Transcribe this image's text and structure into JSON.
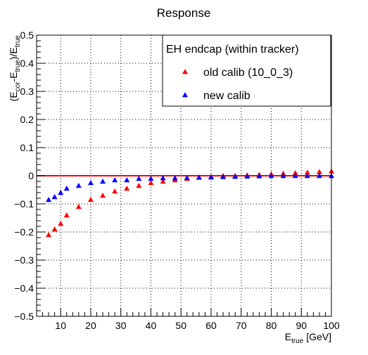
{
  "chart_data": {
    "type": "scatter",
    "title": "Response",
    "xlabel": "E",
    "xlabel_sub": "true",
    "xlabel_unit": " [GeV]",
    "ylabel_parts": [
      {
        "t": "(E",
        "sub": false
      },
      {
        "t": "cor",
        "sub": true
      },
      {
        "t": "-E",
        "sub": false
      },
      {
        "t": "true",
        "sub": true
      },
      {
        "t": ")/E",
        "sub": false
      },
      {
        "t": "true",
        "sub": true
      }
    ],
    "xlim": [
      2,
      100
    ],
    "ylim": [
      -0.5,
      0.5
    ],
    "xticks": [
      10,
      20,
      30,
      40,
      50,
      60,
      70,
      80,
      90,
      100
    ],
    "yticks": [
      -0.5,
      -0.4,
      -0.3,
      -0.2,
      -0.1,
      0,
      0.1,
      0.2,
      0.3,
      0.4,
      0.5
    ],
    "ytick_labels": [
      "−0.5",
      "−0.4",
      "−0.3",
      "−0.2",
      "−0.1",
      "0",
      "0.1",
      "0.2",
      "0.3",
      "0.4",
      "0.5"
    ],
    "grid": true,
    "reference_line": {
      "y": 0,
      "color": "#ff0000"
    },
    "legend": {
      "position": "top-right",
      "header": "EH endcap (within tracker)",
      "entries": [
        {
          "label": "old calib (10_0_3)",
          "color": "#ff0000"
        },
        {
          "label": "new calib",
          "color": "#0000ff"
        }
      ]
    },
    "series": [
      {
        "name": "old calib (10_0_3)",
        "color": "#ff0000",
        "marker": "triangle",
        "x": [
          6,
          8,
          10,
          12,
          16,
          20,
          24,
          28,
          32,
          36,
          40,
          44,
          48,
          52,
          56,
          60,
          64,
          68,
          72,
          76,
          80,
          84,
          88,
          92,
          96,
          100
        ],
        "y": [
          -0.21,
          -0.19,
          -0.17,
          -0.14,
          -0.11,
          -0.085,
          -0.07,
          -0.055,
          -0.045,
          -0.035,
          -0.025,
          -0.02,
          -0.015,
          -0.01,
          -0.005,
          -0.003,
          0,
          0,
          0.002,
          0.004,
          0.006,
          0.008,
          0.01,
          0.012,
          0.014,
          0.016
        ]
      },
      {
        "name": "new calib",
        "color": "#0000ff",
        "marker": "triangle",
        "x": [
          6,
          8,
          10,
          12,
          16,
          20,
          24,
          28,
          32,
          36,
          40,
          44,
          48,
          52,
          56,
          60,
          64,
          68,
          72,
          76,
          80,
          84,
          88,
          92,
          96,
          100
        ],
        "y": [
          -0.085,
          -0.075,
          -0.06,
          -0.045,
          -0.035,
          -0.025,
          -0.02,
          -0.015,
          -0.015,
          -0.01,
          -0.01,
          -0.008,
          -0.008,
          -0.007,
          -0.006,
          -0.005,
          -0.004,
          -0.003,
          -0.002,
          -0.001,
          0,
          0,
          0,
          0,
          0,
          0
        ]
      }
    ]
  }
}
